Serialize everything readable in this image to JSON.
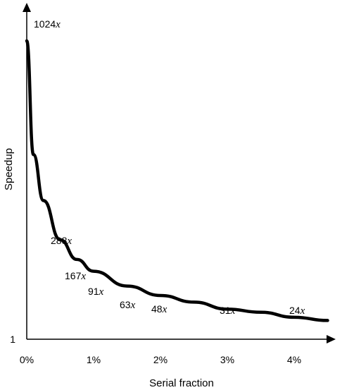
{
  "chart_data": {
    "type": "line",
    "title": "",
    "xlabel": "Serial fraction",
    "ylabel": "Speedup",
    "x_ticks": [
      "0%",
      "1%",
      "2%",
      "3%",
      "4%"
    ],
    "y_ticks": [
      "1"
    ],
    "xlim": [
      0,
      4.5
    ],
    "ylim": [
      1,
      1100
    ],
    "grid": false,
    "series": [
      {
        "x": [
          0,
          0.1,
          0.25,
          0.5,
          0.75,
          1.0,
          1.5,
          2.0,
          2.5,
          3.0,
          3.5,
          4.0,
          4.5
        ],
        "values": [
          1024,
          463,
          288,
          167,
          117,
          91,
          63,
          48,
          39,
          31,
          28,
          24,
          22
        ]
      }
    ],
    "annotations": [
      {
        "number": "1024",
        "unit": "x",
        "at_x": 0,
        "value": 1024
      },
      {
        "number": "288",
        "unit": "x",
        "at_x": 0.25,
        "value": 288
      },
      {
        "number": "167",
        "unit": "x",
        "at_x": 0.5,
        "value": 167
      },
      {
        "number": "91",
        "unit": "x",
        "at_x": 1.0,
        "value": 91
      },
      {
        "number": "63",
        "unit": "x",
        "at_x": 1.5,
        "value": 63
      },
      {
        "number": "48",
        "unit": "x",
        "at_x": 2.0,
        "value": 48
      },
      {
        "number": "31",
        "unit": "x",
        "at_x": 3.0,
        "value": 31
      },
      {
        "number": "24",
        "unit": "x",
        "at_x": 4.0,
        "value": 24
      }
    ]
  }
}
